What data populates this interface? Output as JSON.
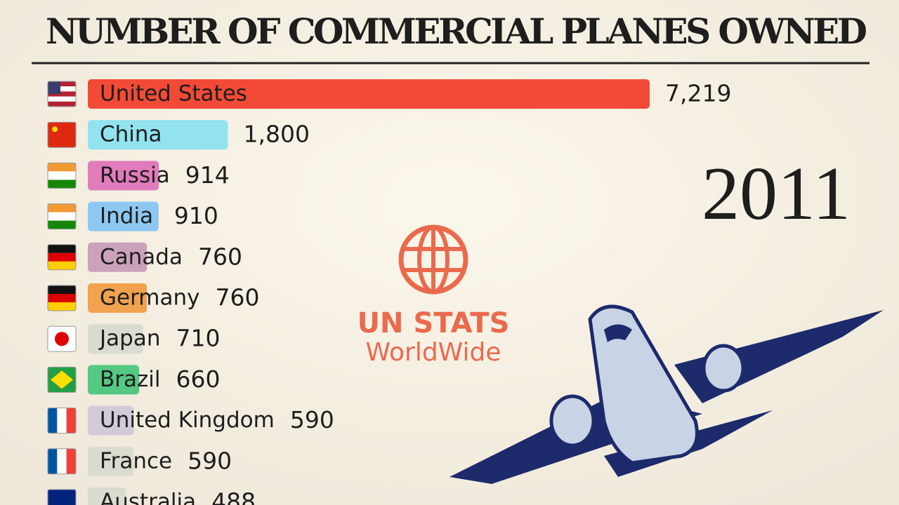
{
  "chart_data": {
    "type": "bar",
    "title": "NUMBER OF COMMERCIAL PLANES OWNED",
    "year": "2011",
    "categories": [
      "United States",
      "China",
      "Russia",
      "India",
      "Canada",
      "Germany",
      "Japan",
      "Brazil",
      "United Kingdom",
      "France",
      "Australia"
    ],
    "values": [
      7219,
      1800,
      914,
      910,
      760,
      760,
      710,
      660,
      590,
      590,
      488
    ],
    "value_labels": [
      "7,219",
      "1,800",
      "914",
      "910",
      "760",
      "760",
      "710",
      "660",
      "590",
      "590",
      "488"
    ],
    "colors": [
      "#f24a36",
      "#92e2ef",
      "#e07cbb",
      "#8ec8f2",
      "#cca2bb",
      "#f1a24f",
      "#d9ddd0",
      "#55c983",
      "#d2cad9",
      "#d9ddd0",
      "#d9ddd0"
    ]
  },
  "logo": {
    "line1": "UN STATS",
    "line2": "WorldWide"
  }
}
